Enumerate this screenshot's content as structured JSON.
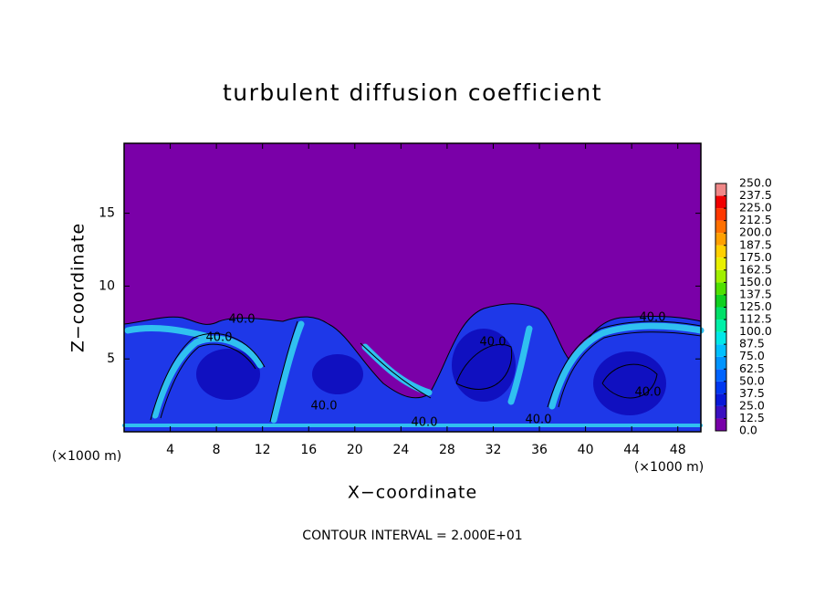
{
  "chart_data": {
    "type": "contour",
    "title": "turbulent diffusion coefficient",
    "xlabel": "X−coordinate",
    "ylabel": "Z−coordinate",
    "xunit": "(×1000 m)",
    "note": "CONTOUR INTERVAL = 2.000E+01",
    "xlim": [
      0,
      50
    ],
    "ylim": [
      0,
      19.8
    ],
    "xticks": [
      4,
      8,
      12,
      16,
      20,
      24,
      28,
      32,
      36,
      40,
      44,
      48
    ],
    "yticks": [
      5,
      10,
      15
    ],
    "contour_labels": [
      "40.0",
      "40.0",
      "40.0",
      "40.0",
      "40.0",
      "40.0",
      "40.0",
      "40.0"
    ],
    "colorbar": {
      "ticks": [
        {
          "value": 0,
          "label": "0.0"
        },
        12.5,
        {
          "value": 25,
          "label": "25.0"
        },
        37.5,
        {
          "value": 50,
          "label": "50.0"
        },
        62.5,
        {
          "value": 75,
          "label": "75.0"
        },
        87.5,
        {
          "value": 100,
          "label": "100.0"
        },
        112.5,
        {
          "value": 125,
          "label": "125.0"
        },
        137.5,
        {
          "value": 150,
          "label": "150.0"
        },
        162.5,
        {
          "value": 175,
          "label": "175.0"
        },
        187.5,
        {
          "value": 200,
          "label": "200.0"
        },
        212.5,
        {
          "value": 225,
          "label": "225.0"
        },
        237.5,
        {
          "value": 250,
          "label": "250.0"
        }
      ],
      "colors": [
        "#7800a8",
        "#3a10c0",
        "#0818d8",
        "#0038f0",
        "#0064ff",
        "#0094ff",
        "#00c0ff",
        "#00e8e8",
        "#00f0a8",
        "#00e068",
        "#10d020",
        "#50e000",
        "#a0f000",
        "#e8f000",
        "#ffd000",
        "#ffa000",
        "#ff7000",
        "#ff3800",
        "#f00000",
        "#f08888"
      ]
    }
  }
}
